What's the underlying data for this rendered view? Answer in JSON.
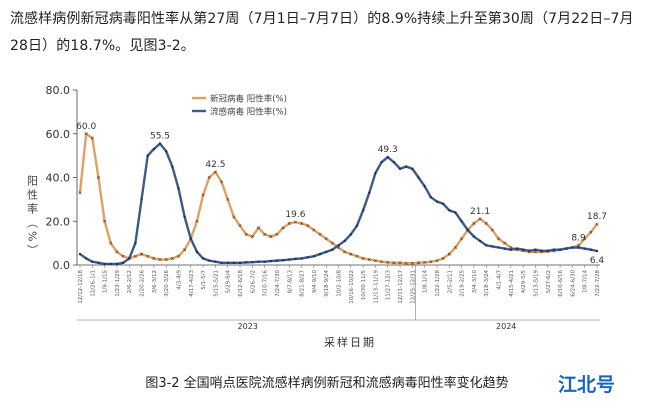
{
  "paragraph": "流感样病例新冠病毒阳性率从第27周（7月1日–7月7日）的8.9%持续上升至第30周（7月22日–7月28日）的18.7%。见图3-2。",
  "chart_data": {
    "type": "line",
    "y_label": "阳性率（%）",
    "x_label": "采样日期",
    "year_labels": [
      "2023",
      "2024"
    ],
    "legend": "top-left",
    "ylim": [
      0,
      80
    ],
    "yticks": [
      {
        "value": 0,
        "label": "0.0"
      },
      {
        "value": 20,
        "label": "20.0"
      },
      {
        "value": 40,
        "label": "40.0"
      },
      {
        "value": 60,
        "label": "60.0"
      },
      {
        "value": 80,
        "label": "80.0"
      }
    ],
    "categories": [
      "12/12-12/18",
      null,
      "12/26-1/1",
      null,
      "1/9-1/15",
      null,
      "1/23-1/29",
      null,
      "2/6-2/12",
      null,
      "2/20-2/26",
      null,
      "3/6-3/12",
      null,
      "3/20-3/26",
      null,
      "4/3-4/9",
      null,
      "4/17-4/23",
      null,
      "5/1-5/7",
      null,
      "5/15-5/21",
      null,
      "5/29-6/4",
      null,
      "6/12-6/18",
      null,
      "6/26-7/2",
      null,
      "7/10-7/16",
      null,
      "7/24-7/30",
      null,
      "8/7-8/13",
      null,
      "8/21-8/27",
      null,
      "9/4-9/10",
      null,
      "9/18-9/24",
      null,
      "10/2-10/8",
      null,
      "10/16-10/22",
      null,
      "10/30-11/5",
      null,
      "11/13-11/19",
      null,
      "11/27-12/3",
      null,
      "12/11-12/17",
      null,
      "12/25-12/31",
      null,
      "1/8-1/14",
      null,
      "1/22-1/28",
      null,
      "2/5-2/11",
      null,
      "2/19-2/25",
      null,
      "3/4-3/10",
      null,
      "3/18-3/24",
      null,
      "4/1-4/7",
      null,
      "4/15-4/21",
      null,
      "4/29-5/5",
      null,
      "5/13-5/19",
      null,
      "5/27-6/2",
      null,
      "6/10-6/16",
      null,
      "6/24-6/30",
      null,
      "7/8-7/14",
      null,
      "7/22-7/28"
    ],
    "series": [
      {
        "name": "新冠病毒 阳性率(%)",
        "color": "#e0a062",
        "values": [
          33,
          60,
          58,
          40,
          20,
          10,
          6,
          4,
          3,
          4,
          5,
          4,
          3,
          2.5,
          2.5,
          3,
          4,
          7,
          12,
          20,
          32,
          40,
          42.5,
          38,
          30,
          22,
          18,
          14,
          13,
          17,
          14,
          13,
          14,
          17,
          19,
          19.6,
          19,
          18,
          16,
          14,
          12,
          10,
          8,
          6,
          5,
          4,
          3,
          2.5,
          2,
          1.5,
          1.2,
          1,
          1,
          0.8,
          0.8,
          1,
          1.2,
          1.5,
          2,
          3,
          5,
          8,
          12,
          16,
          19,
          21.1,
          19,
          16,
          12,
          10,
          8,
          7,
          6.5,
          6,
          6,
          6,
          6.2,
          6.5,
          7,
          7.5,
          8,
          8.9,
          12,
          15,
          18.7
        ],
        "value_labels": [
          null,
          "60.0",
          null,
          null,
          null,
          null,
          null,
          null,
          null,
          null,
          null,
          null,
          null,
          null,
          null,
          null,
          null,
          null,
          null,
          null,
          null,
          null,
          "42.5",
          null,
          null,
          null,
          null,
          null,
          null,
          null,
          null,
          null,
          null,
          null,
          null,
          "19.6",
          null,
          null,
          null,
          null,
          null,
          null,
          null,
          null,
          null,
          null,
          null,
          null,
          null,
          null,
          null,
          null,
          null,
          null,
          null,
          null,
          null,
          null,
          null,
          null,
          null,
          null,
          null,
          null,
          null,
          "21.1",
          null,
          null,
          null,
          null,
          null,
          null,
          null,
          null,
          null,
          null,
          null,
          null,
          null,
          null,
          null,
          "8.9",
          null,
          null,
          "18.7"
        ]
      },
      {
        "name": "流感病毒 阳性率(%)",
        "color": "#3d5a8c",
        "values": [
          5,
          3,
          1.5,
          1,
          0.5,
          0.5,
          0.5,
          1,
          3,
          10,
          30,
          50,
          53,
          55.5,
          52,
          45,
          35,
          22,
          12,
          6,
          3,
          2,
          1.5,
          1,
          1,
          1,
          1,
          1.2,
          1.3,
          1.5,
          1.5,
          1.8,
          2,
          2.2,
          2.5,
          2.8,
          3,
          3.5,
          4,
          5,
          6,
          7,
          9,
          11,
          14,
          18,
          25,
          33,
          42,
          47,
          49.3,
          47,
          44,
          45,
          44,
          40,
          36,
          31,
          29,
          28,
          25,
          24,
          20,
          16,
          13,
          11,
          9,
          8.5,
          8,
          7.5,
          7,
          7.5,
          7,
          6.5,
          7,
          6.5,
          6.5,
          7,
          7,
          7.5,
          8,
          8,
          7.5,
          7,
          6.4
        ],
        "value_labels": [
          null,
          null,
          null,
          null,
          null,
          null,
          null,
          null,
          null,
          null,
          null,
          null,
          null,
          "55.5",
          null,
          null,
          null,
          null,
          null,
          null,
          null,
          null,
          null,
          null,
          null,
          null,
          null,
          null,
          null,
          null,
          null,
          null,
          null,
          null,
          null,
          null,
          null,
          null,
          null,
          null,
          null,
          null,
          null,
          null,
          null,
          null,
          null,
          null,
          null,
          null,
          "49.3",
          null,
          null,
          null,
          null,
          null,
          null,
          null,
          null,
          null,
          null,
          null,
          null,
          null,
          null,
          null,
          null,
          null,
          null,
          null,
          null,
          null,
          null,
          null,
          null,
          null,
          null,
          null,
          null,
          null,
          null,
          null,
          null,
          null,
          "6.4"
        ]
      }
    ]
  },
  "caption": "图3-2 全国哨点医院流感样病例新冠和流感病毒阳性率变化趋势",
  "watermark": "江北号"
}
